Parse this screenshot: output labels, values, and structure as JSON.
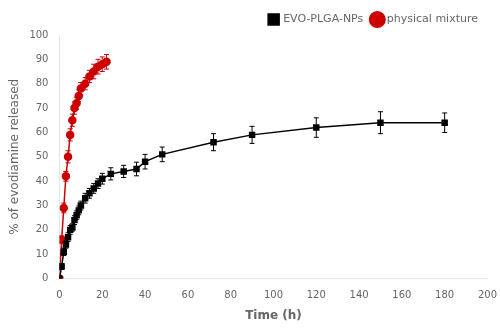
{
  "chart_data": {
    "type": "line",
    "xlabel": "Time (h)",
    "ylabel": "% of evodiamine released",
    "xlim": [
      0,
      200
    ],
    "ylim": [
      0,
      100
    ],
    "xticks": [
      0,
      20,
      40,
      60,
      80,
      100,
      120,
      140,
      160,
      180,
      200
    ],
    "yticks": [
      0,
      10,
      20,
      30,
      40,
      50,
      60,
      70,
      80,
      90,
      100
    ],
    "grid": false,
    "legend": "upper right",
    "series": [
      {
        "name": "EVO-PLGA-NPs",
        "color": "#000000",
        "marker": "square",
        "x": [
          0,
          1,
          2,
          3,
          4,
          5,
          6,
          7,
          8,
          9,
          10,
          12,
          14,
          16,
          18,
          20,
          24,
          30,
          36,
          40,
          48,
          72,
          90,
          120,
          150,
          180
        ],
        "values": [
          0,
          5,
          11,
          14,
          17,
          20,
          21,
          24,
          26,
          28,
          30,
          33,
          35,
          37,
          39,
          41,
          43,
          44,
          45,
          48,
          51,
          56,
          59,
          62,
          64,
          64
        ],
        "yerr": [
          0,
          1.2,
          1.5,
          1.5,
          1.8,
          1.8,
          1.5,
          1.8,
          1.8,
          1.8,
          1.8,
          2.0,
          2.0,
          2.0,
          2.0,
          2.2,
          2.5,
          2.5,
          2.8,
          3.0,
          3.0,
          3.5,
          3.5,
          4.0,
          4.5,
          4.0
        ]
      },
      {
        "name": "physical mixture",
        "color": "#cc0000",
        "marker": "circle",
        "x": [
          0,
          1,
          2,
          3,
          4,
          5,
          6,
          7,
          8,
          9,
          10,
          12,
          14,
          16,
          18,
          20,
          22
        ],
        "values": [
          0,
          16,
          29,
          42,
          50,
          59,
          65,
          70,
          72,
          75,
          78,
          80,
          83,
          85,
          87,
          88,
          89
        ],
        "yerr": [
          0,
          1.5,
          2.0,
          2.0,
          2.5,
          2.5,
          2.5,
          2.5,
          2.5,
          2.5,
          2.5,
          2.5,
          2.5,
          3.0,
          3.0,
          3.0,
          3.0
        ]
      }
    ]
  }
}
